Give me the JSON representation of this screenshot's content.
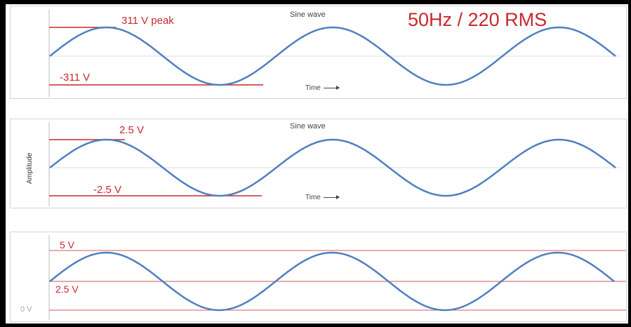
{
  "panels": [
    {
      "title": "Sine wave",
      "peak_label": "311 V peak",
      "trough_label": "-311 V",
      "xlabel": "Time",
      "header": "50Hz / 220 RMS"
    },
    {
      "title": "Sine wave",
      "peak_label": "2.5 V",
      "trough_label": "-2.5 V",
      "xlabel": "Time",
      "ylabel": "Amplitude"
    },
    {
      "label_top": "5 V",
      "label_mid": "2.5 V",
      "label_bottom": "0 V"
    }
  ],
  "colors": {
    "wave": "#4f7fbf",
    "red": "#c8282d",
    "grid": "#dddddd"
  },
  "wave_cycles": 2.5
}
